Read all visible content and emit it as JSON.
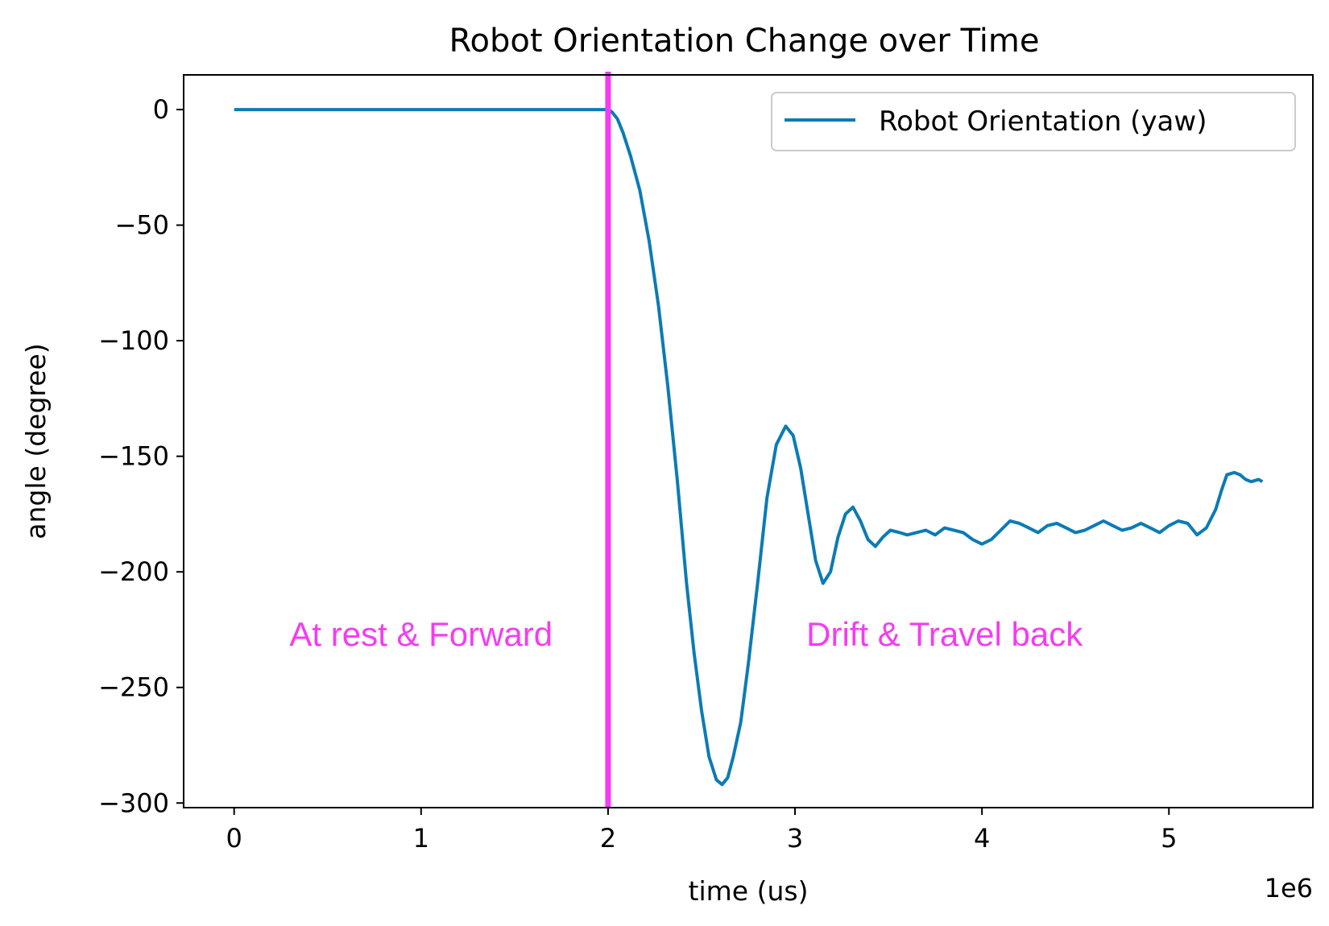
{
  "chart_data": {
    "type": "line",
    "title": "Robot Orientation Change over Time",
    "xlabel": "time (us)",
    "ylabel": "angle (degree)",
    "x_scale_label": "1e6",
    "x_scale": 1000000,
    "xlim": [
      -270000,
      5770000
    ],
    "ylim": [
      -302,
      15
    ],
    "x_ticks": [
      0,
      1000000,
      2000000,
      3000000,
      4000000,
      5000000
    ],
    "x_tick_labels": [
      "0",
      "1",
      "2",
      "3",
      "4",
      "5"
    ],
    "y_ticks": [
      0,
      -50,
      -100,
      -150,
      -200,
      -250,
      -300
    ],
    "y_tick_labels": [
      "0",
      "−50",
      "−100",
      "−150",
      "−200",
      "−250",
      "−300"
    ],
    "grid": false,
    "legend": {
      "position": "top-right",
      "entries": [
        "Robot Orientation (yaw)"
      ]
    },
    "series": [
      {
        "name": "Robot Orientation (yaw)",
        "color": "#0b7bb5",
        "x": [
          0,
          500000,
          1000000,
          1500000,
          2000000,
          2020000,
          2050000,
          2080000,
          2120000,
          2170000,
          2220000,
          2270000,
          2320000,
          2370000,
          2420000,
          2460000,
          2500000,
          2540000,
          2580000,
          2610000,
          2640000,
          2670000,
          2710000,
          2750000,
          2800000,
          2850000,
          2900000,
          2950000,
          2990000,
          3030000,
          3070000,
          3110000,
          3150000,
          3190000,
          3230000,
          3270000,
          3310000,
          3350000,
          3390000,
          3430000,
          3470000,
          3510000,
          3560000,
          3600000,
          3650000,
          3700000,
          3750000,
          3800000,
          3850000,
          3900000,
          3950000,
          4000000,
          4050000,
          4100000,
          4150000,
          4200000,
          4250000,
          4300000,
          4350000,
          4400000,
          4450000,
          4500000,
          4550000,
          4600000,
          4650000,
          4700000,
          4750000,
          4800000,
          4850000,
          4900000,
          4950000,
          5000000,
          5050000,
          5100000,
          5150000,
          5200000,
          5250000,
          5280000,
          5310000,
          5350000,
          5380000,
          5410000,
          5440000,
          5480000,
          5500000
        ],
        "values": [
          0,
          0,
          0,
          0,
          0,
          -1,
          -4,
          -10,
          -20,
          -35,
          -57,
          -85,
          -120,
          -160,
          -205,
          -235,
          -260,
          -280,
          -290,
          -292,
          -289,
          -280,
          -265,
          -240,
          -205,
          -168,
          -145,
          -137,
          -141,
          -155,
          -175,
          -195,
          -205,
          -200,
          -185,
          -175,
          -172,
          -178,
          -186,
          -189,
          -185,
          -182,
          -183,
          -184,
          -183,
          -182,
          -184,
          -181,
          -182,
          -183,
          -186,
          -188,
          -186,
          -182,
          -178,
          -179,
          -181,
          -183,
          -180,
          -179,
          -181,
          -183,
          -182,
          -180,
          -178,
          -180,
          -182,
          -181,
          -179,
          -181,
          -183,
          -180,
          -178,
          -179,
          -184,
          -181,
          -173,
          -165,
          -158,
          -157,
          -158,
          -160,
          -161,
          -160,
          -161
        ]
      }
    ],
    "divider": {
      "x": 2000000,
      "color": "#f53bf2"
    },
    "annotations": [
      {
        "text": "At rest & Forward",
        "x": 1000000,
        "y": -232,
        "color": "#f53bf2"
      },
      {
        "text": "Drift & Travel back",
        "x": 3800000,
        "y": -232,
        "color": "#f53bf2"
      }
    ]
  }
}
